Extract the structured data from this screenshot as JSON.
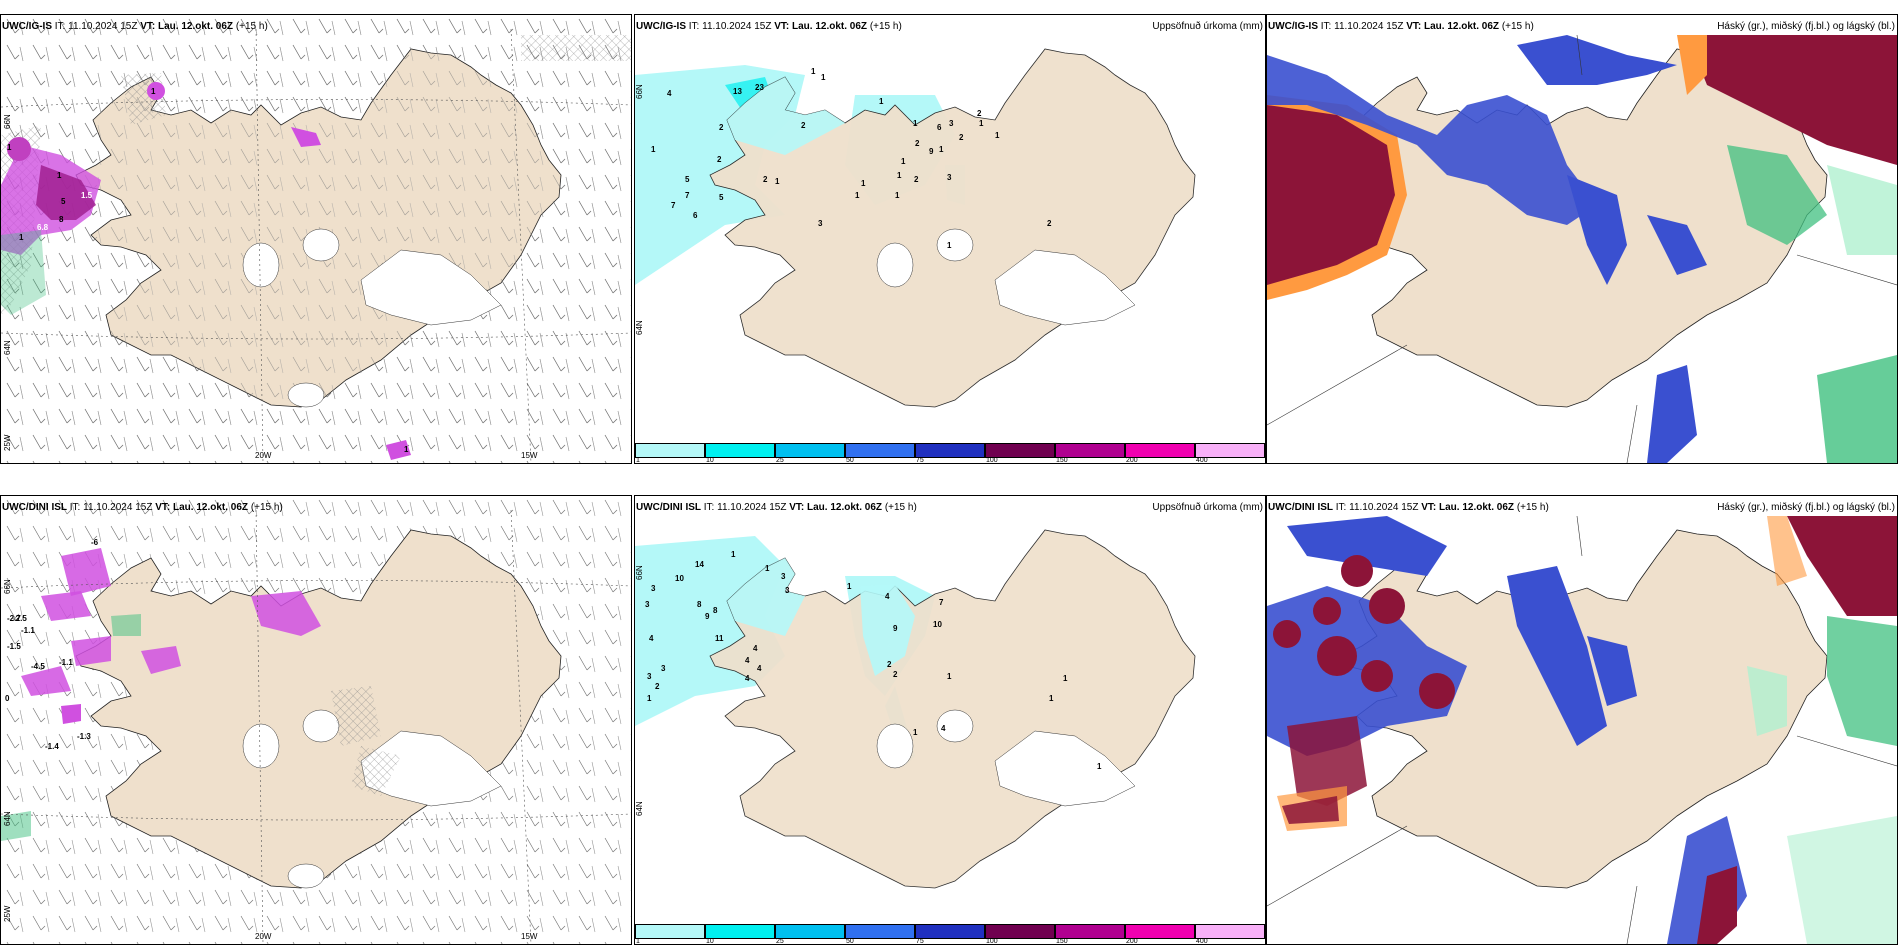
{
  "panels": {
    "p1": {
      "model": "UWC/IG-IS",
      "it_label": "IT:",
      "it": "11.10.2024 15Z",
      "vt_label": "VT:",
      "vt": "Lau. 12.okt. 06Z",
      "lead": "(+15 h)",
      "right_title": ""
    },
    "p2": {
      "model": "UWC/IG-IS",
      "it_label": "IT:",
      "it": "11.10.2024 15Z",
      "vt_label": "VT:",
      "vt": "Lau. 12.okt. 06Z",
      "lead": "(+15 h)",
      "right_title": "Uppsöfnuð úrkoma (mm)"
    },
    "p3": {
      "model": "UWC/IG-IS",
      "it_label": "IT:",
      "it": "11.10.2024 15Z",
      "vt_label": "VT:",
      "vt": "Lau. 12.okt. 06Z",
      "lead": "(+15 h)",
      "right_title": "Háský (gr.), miðský (fj.bl.) og lágský (bl.)"
    },
    "p4": {
      "model": "UWC/DINI ISL",
      "it_label": "IT:",
      "it": "11.10.2024 15Z",
      "vt_label": "VT:",
      "vt": "Lau. 12.okt. 06Z",
      "lead": "(+15 h)",
      "right_title": ""
    },
    "p5": {
      "model": "UWC/DINI ISL",
      "it_label": "IT:",
      "it": "11.10.2024 15Z",
      "vt_label": "VT:",
      "vt": "Lau. 12.okt. 06Z",
      "lead": "(+15 h)",
      "right_title": "Uppsöfnuð úrkoma (mm)"
    },
    "p6": {
      "model": "UWC/DINI ISL",
      "it_label": "IT:",
      "it": "11.10.2024 15Z",
      "vt_label": "VT:",
      "vt": "Lau. 12.okt. 06Z",
      "lead": "(+15 h)",
      "right_title": "Háský (gr.), miðský (fj.bl.) og lágský (bl.)"
    }
  },
  "axis": {
    "lon_20": "20W",
    "lon_15": "15W",
    "lon_25": "25W",
    "lat_66": "66N",
    "lat_64": "64N"
  },
  "legend": {
    "ticks": [
      "1",
      "10",
      "25",
      "50",
      "75",
      "100",
      "150",
      "200",
      "400"
    ],
    "colors": [
      "#b4f8f8",
      "#00f0f0",
      "#00c0f0",
      "#3070f0",
      "#2030c0",
      "#700050",
      "#b00090",
      "#f000b0",
      "#f8b0f8"
    ]
  },
  "precip_ig": [
    "4",
    "13",
    "23",
    "1",
    "1",
    "1",
    "5",
    "7",
    "7",
    "6",
    "5",
    "2",
    "2",
    "1",
    "2",
    "3",
    "2",
    "6",
    "3",
    "2",
    "2",
    "1",
    "9",
    "1",
    "2",
    "1",
    "1",
    "1",
    "1",
    "1",
    "1",
    "2",
    "3",
    "1",
    "1",
    "2",
    "1"
  ],
  "precip_dini": [
    "14",
    "10",
    "1",
    "3",
    "3",
    "8",
    "9",
    "8",
    "11",
    "4",
    "4",
    "4",
    "4",
    "3",
    "3",
    "2",
    "1",
    "1",
    "4",
    "9",
    "7",
    "10",
    "2",
    "2",
    "1",
    "4",
    "1",
    "1",
    "1",
    "1",
    "1",
    "3",
    "3",
    "4"
  ],
  "temp_ig": [
    "1",
    "1.5",
    "1",
    "5",
    "1",
    "6.8",
    "1",
    "8",
    "1"
  ],
  "temp_dini": [
    "-6",
    "-2.5",
    "-2.7",
    "-1.1",
    "-1.5",
    "-1.1",
    "-4.5",
    "-1.3",
    "-1.4",
    "0"
  ],
  "colors": {
    "land": "#efe0cc",
    "cyan_light": "#b4f8f8",
    "cyan": "#00f0f0",
    "blue": "#3a50d0",
    "dark_red": "#8c1438",
    "green": "#40c080",
    "magenta": "#d050e0"
  }
}
